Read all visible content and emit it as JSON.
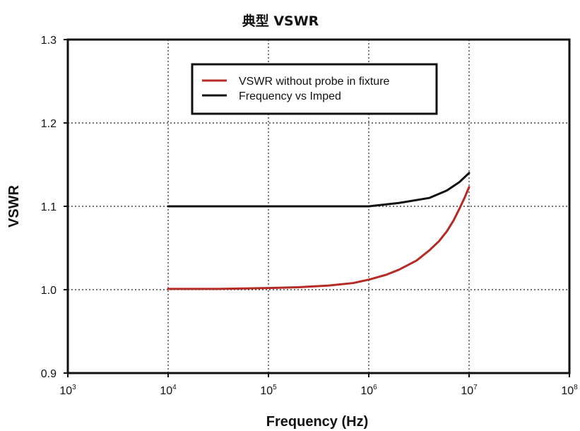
{
  "chart_data": {
    "type": "line",
    "title": "典型 VSWR",
    "xlabel": "Frequency (Hz)",
    "ylabel": "VSWR",
    "x_scale": "log",
    "xlim": [
      1000,
      100000000
    ],
    "ylim": [
      0.9,
      1.3
    ],
    "x_ticks": [
      {
        "value": 1000,
        "base": "10",
        "exp": "3"
      },
      {
        "value": 10000,
        "base": "10",
        "exp": "4"
      },
      {
        "value": 100000,
        "base": "10",
        "exp": "5"
      },
      {
        "value": 1000000,
        "base": "10",
        "exp": "6"
      },
      {
        "value": 10000000,
        "base": "10",
        "exp": "7"
      },
      {
        "value": 100000000,
        "base": "10",
        "exp": "8"
      }
    ],
    "y_ticks": [
      {
        "value": 0.9,
        "label": "0.9"
      },
      {
        "value": 1.0,
        "label": "1.0"
      },
      {
        "value": 1.1,
        "label": "1.1"
      },
      {
        "value": 1.2,
        "label": "1.2"
      },
      {
        "value": 1.3,
        "label": "1.3"
      }
    ],
    "grid": true,
    "legend_position": "top-center",
    "series": [
      {
        "name": "VSWR without probe in fixture",
        "color": "#b52a23",
        "points": [
          [
            10000,
            1.001
          ],
          [
            31623,
            1.001
          ],
          [
            100000,
            1.002
          ],
          [
            200000,
            1.003
          ],
          [
            400000,
            1.005
          ],
          [
            700000,
            1.008
          ],
          [
            1000000,
            1.012
          ],
          [
            1500000,
            1.018
          ],
          [
            2000000,
            1.024
          ],
          [
            3000000,
            1.035
          ],
          [
            4000000,
            1.047
          ],
          [
            5000000,
            1.058
          ],
          [
            6000000,
            1.07
          ],
          [
            7000000,
            1.083
          ],
          [
            8000000,
            1.097
          ],
          [
            9000000,
            1.11
          ],
          [
            10000000,
            1.123
          ]
        ]
      },
      {
        "name": "Frequency vs Imped",
        "color": "#111111",
        "points": [
          [
            10000,
            1.1
          ],
          [
            100000,
            1.1
          ],
          [
            1000000,
            1.1
          ],
          [
            2000000,
            1.104
          ],
          [
            4000000,
            1.11
          ],
          [
            6000000,
            1.119
          ],
          [
            8000000,
            1.129
          ],
          [
            10000000,
            1.14
          ]
        ]
      }
    ]
  }
}
